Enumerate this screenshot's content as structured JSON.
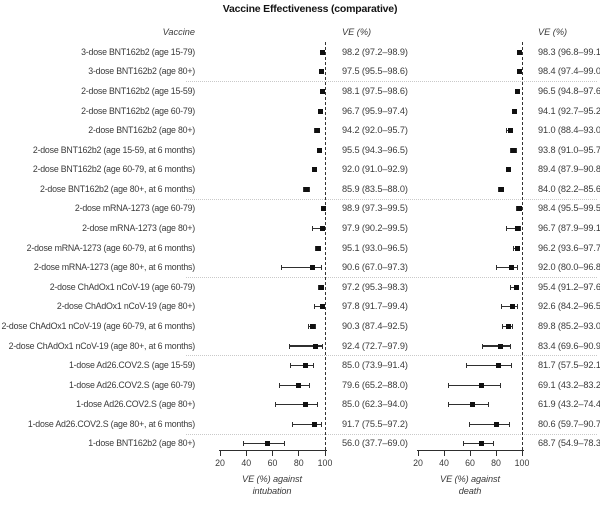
{
  "chart_data": {
    "type": "scatter",
    "subtype": "forest-plot-with-95pct-ci",
    "title": "Vaccine Effectiveness (comparative)",
    "row_header": "Vaccine",
    "value_format": "VE (lower–upper)",
    "legend_position": "none",
    "grid": "group-separators-dotted",
    "panels": [
      {
        "name": "intubation",
        "value_header": "VE (%)",
        "xlabel_line1": "VE (%) against",
        "xlabel_line2": "intubation",
        "xticks": [
          20,
          40,
          60,
          80,
          100
        ],
        "xlim": [
          20,
          100
        ],
        "refline": 100
      },
      {
        "name": "death",
        "value_header": "VE (%)",
        "xlabel_line1": "VE (%) against",
        "xlabel_line2": "death",
        "xticks": [
          20,
          40,
          60,
          80,
          100
        ],
        "xlim": [
          20,
          100
        ],
        "refline": 100
      }
    ],
    "separators_after_row": [
      2,
      8,
      12,
      16,
      20
    ],
    "rows": [
      {
        "label": "3-dose BNT162b2 (age 15-79)",
        "intubation": [
          98.2,
          97.2,
          98.9
        ],
        "death": [
          98.3,
          96.8,
          99.1
        ]
      },
      {
        "label": "3-dose BNT162b2 (age 80+)",
        "intubation": [
          97.5,
          95.5,
          98.6
        ],
        "death": [
          98.4,
          97.4,
          99.0
        ]
      },
      {
        "label": "2-dose BNT162b2 (age 15-59)",
        "intubation": [
          98.1,
          97.5,
          98.6
        ],
        "death": [
          96.5,
          94.8,
          97.6
        ]
      },
      {
        "label": "2-dose BNT162b2 (age 60-79)",
        "intubation": [
          96.7,
          95.9,
          97.4
        ],
        "death": [
          94.1,
          92.7,
          95.2
        ]
      },
      {
        "label": "2-dose BNT162b2 (age 80+)",
        "intubation": [
          94.2,
          92.0,
          95.7
        ],
        "death": [
          91.0,
          88.4,
          93.0
        ]
      },
      {
        "label": "2-dose BNT162b2 (age 15-59, at 6 months)",
        "intubation": [
          95.5,
          94.3,
          96.5
        ],
        "death": [
          93.8,
          91.0,
          95.7
        ]
      },
      {
        "label": "2-dose BNT162b2 (age 60-79, at 6 months)",
        "intubation": [
          92.0,
          91.0,
          92.9
        ],
        "death": [
          89.4,
          87.9,
          90.8
        ]
      },
      {
        "label": "2-dose BNT162b2 (age 80+, at 6 months)",
        "intubation": [
          85.9,
          83.5,
          88.0
        ],
        "death": [
          84.0,
          82.2,
          85.6
        ]
      },
      {
        "label": "2-dose mRNA-1273 (age 60-79)",
        "intubation": [
          98.9,
          97.3,
          99.5
        ],
        "death": [
          98.4,
          95.5,
          99.5
        ]
      },
      {
        "label": "2-dose mRNA-1273 (age 80+)",
        "intubation": [
          97.9,
          90.2,
          99.5
        ],
        "death": [
          96.7,
          87.9,
          99.1
        ]
      },
      {
        "label": "2-dose mRNA-1273 (age 60-79, at 6 months)",
        "intubation": [
          95.1,
          93.0,
          96.5
        ],
        "death": [
          96.2,
          93.6,
          97.7
        ]
      },
      {
        "label": "2-dose mRNA-1273 (age 80+, at 6 months)",
        "intubation": [
          90.6,
          67.0,
          97.3
        ],
        "death": [
          92.0,
          80.0,
          96.8
        ]
      },
      {
        "label": "2-dose ChAdOx1 nCoV-19 (age 60-79)",
        "intubation": [
          97.2,
          95.3,
          98.3
        ],
        "death": [
          95.4,
          91.2,
          97.6
        ]
      },
      {
        "label": "2-dose ChAdOx1 nCoV-19 (age 80+)",
        "intubation": [
          97.8,
          91.7,
          99.4
        ],
        "death": [
          92.6,
          84.2,
          96.5
        ]
      },
      {
        "label": "2-dose ChAdOx1 nCoV-19 (age 60-79, at 6 months)",
        "intubation": [
          90.3,
          87.4,
          92.5
        ],
        "death": [
          89.8,
          85.2,
          93.0
        ]
      },
      {
        "label": "2-dose ChAdOx1 nCoV-19 (age 80+, at 6 months)",
        "intubation": [
          92.4,
          72.7,
          97.9
        ],
        "death": [
          83.4,
          69.6,
          90.9
        ]
      },
      {
        "label": "1-dose Ad26.COV2.S (age 15-59)",
        "intubation": [
          85.0,
          73.9,
          91.4
        ],
        "death": [
          81.7,
          57.5,
          92.1
        ]
      },
      {
        "label": "1-dose Ad26.COV2.S (age 60-79)",
        "intubation": [
          79.6,
          65.2,
          88.0
        ],
        "death": [
          69.1,
          43.2,
          83.2
        ]
      },
      {
        "label": "1-dose Ad26.COV2.S (age 80+)",
        "intubation": [
          85.0,
          62.3,
          94.0
        ],
        "death": [
          61.9,
          43.2,
          74.4
        ]
      },
      {
        "label": "1-dose Ad26.COV2.S (age 80+, at 6 months)",
        "intubation": [
          91.7,
          75.5,
          97.2
        ],
        "death": [
          80.6,
          59.7,
          90.7
        ]
      },
      {
        "label": "1-dose BNT162b2 (age 80+)",
        "intubation": [
          56.0,
          37.7,
          69.0
        ],
        "death": [
          68.7,
          54.9,
          78.3
        ]
      }
    ]
  }
}
